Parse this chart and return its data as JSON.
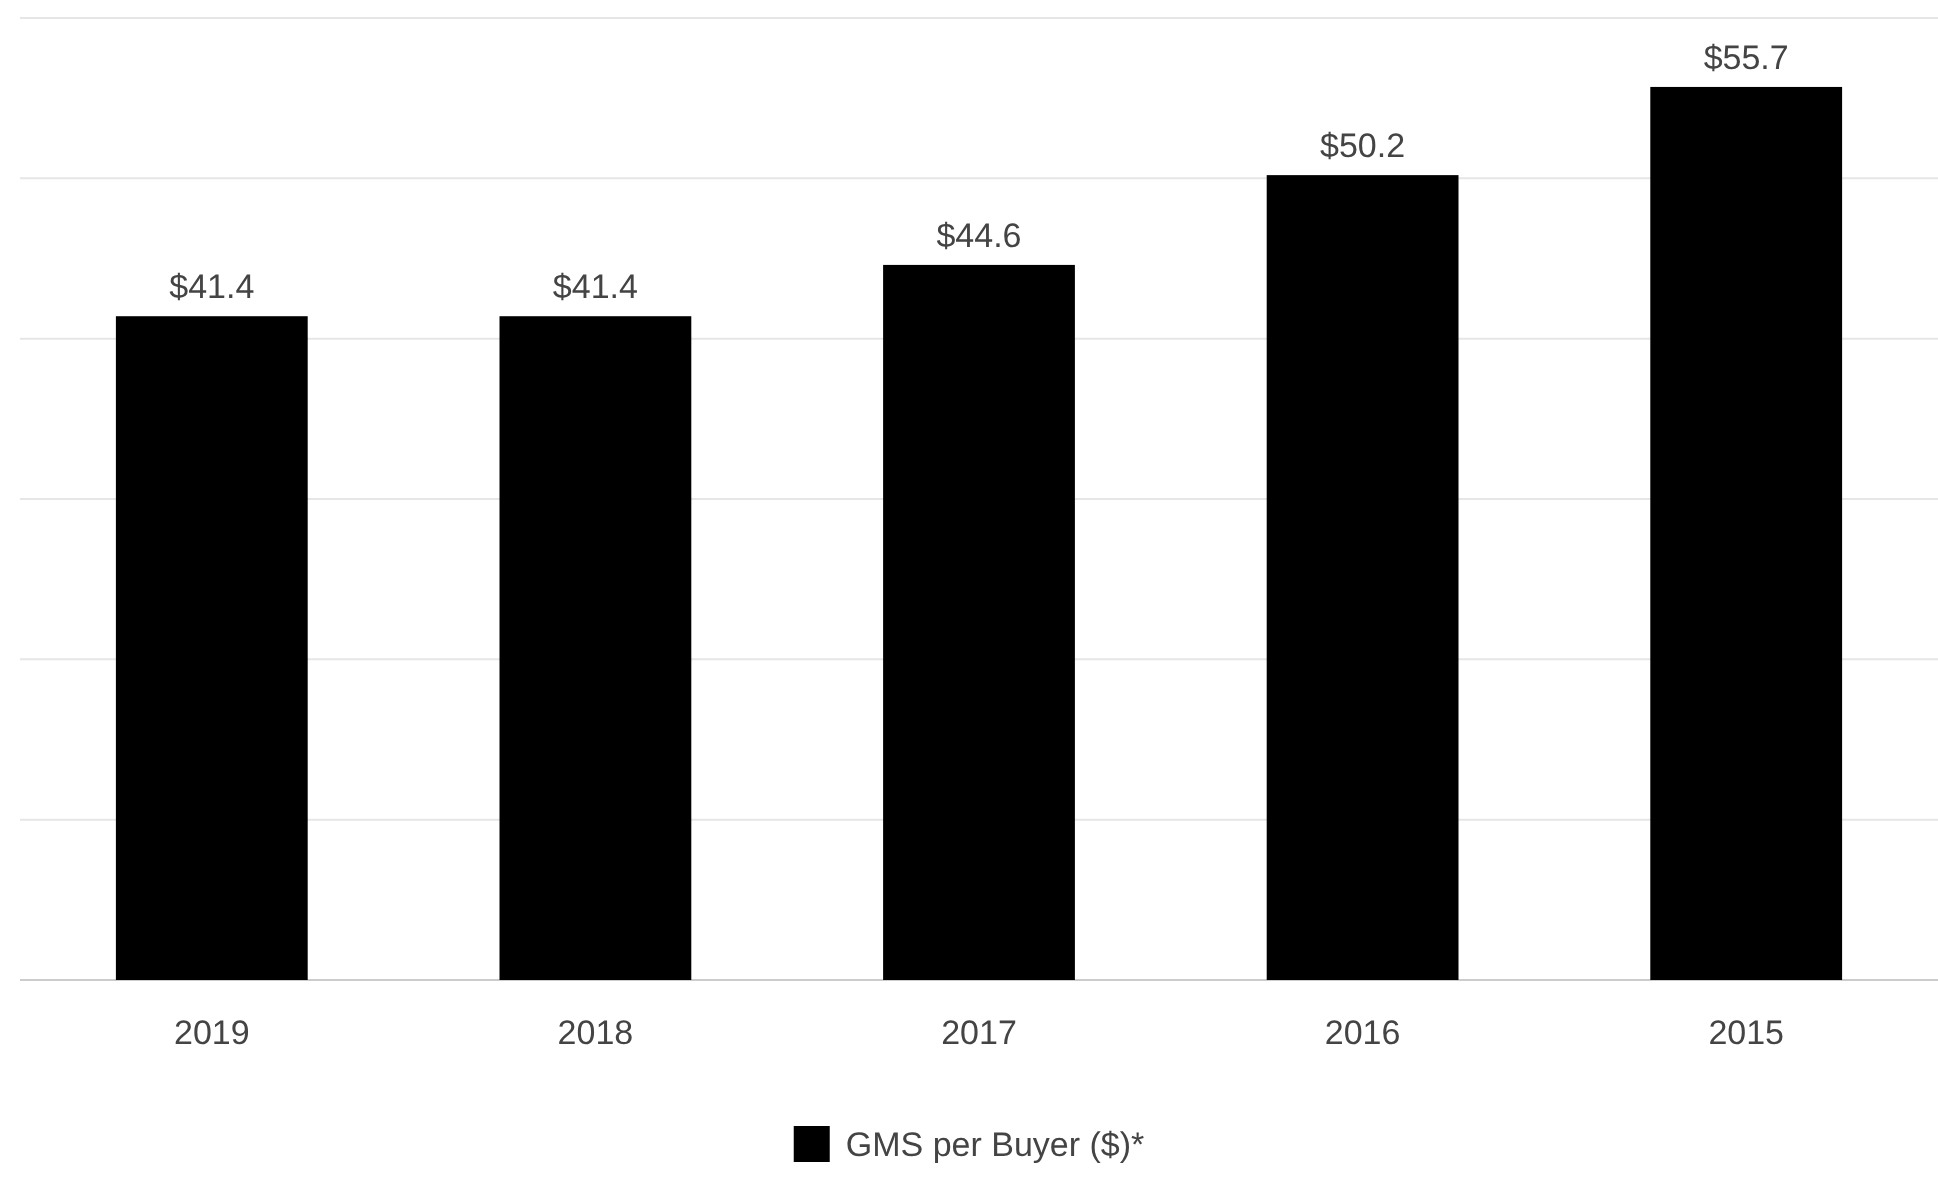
{
  "chart_data": {
    "type": "bar",
    "categories": [
      "2019",
      "2018",
      "2017",
      "2016",
      "2015"
    ],
    "series": [
      {
        "name": "GMS per Buyer ($)*",
        "color": "#000000",
        "values": [
          41.4,
          41.4,
          44.6,
          50.2,
          55.7
        ],
        "value_labels": [
          "$41.4",
          "$41.4",
          "$44.6",
          "$50.2",
          "$55.7"
        ]
      }
    ],
    "ylim": [
      0,
      60
    ],
    "yticks": [
      {
        "value": 0,
        "label": null
      },
      {
        "value": 10,
        "label": null
      },
      {
        "value": 20,
        "label": null
      },
      {
        "value": 30,
        "label": null
      },
      {
        "value": 40,
        "label": null
      },
      {
        "value": 50,
        "label": null
      },
      {
        "value": 60,
        "label": null
      }
    ],
    "tick_labels": "x",
    "grid": "y",
    "legend": "bottom"
  }
}
